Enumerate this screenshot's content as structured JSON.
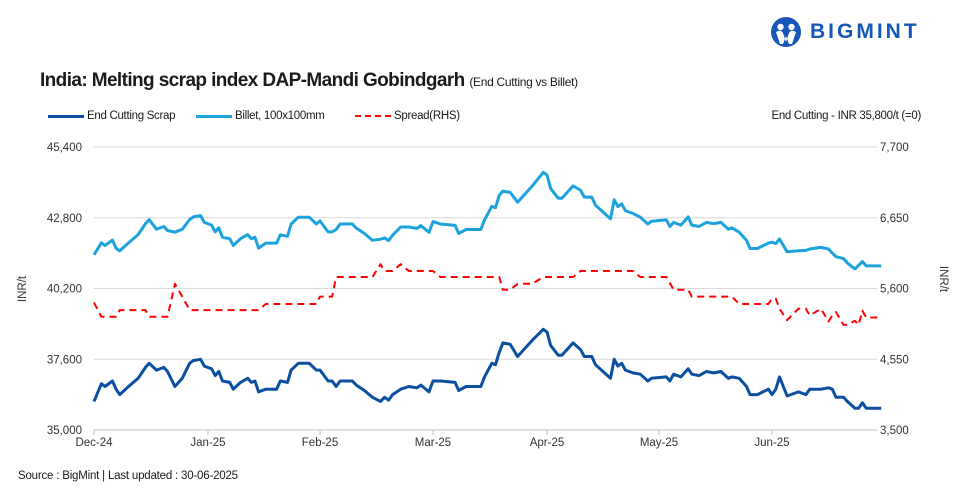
{
  "logo": {
    "text": "BIGMINT",
    "color": "#1658b8"
  },
  "header": {
    "title": "India: Melting scrap index DAP-Mandi Gobindgarh",
    "subtitle": "(End Cutting  vs Billet)"
  },
  "note": "End Cutting - INR 35,800/t (=0)",
  "footer": {
    "source": "Source : BigMint | Last updated : 30-06-2025"
  },
  "chart_data": {
    "type": "line",
    "ylabel_left": "INR/t",
    "ylabel_right": "INR/t",
    "ylim_left": [
      35000,
      45400
    ],
    "ylim_right": [
      3500,
      7700
    ],
    "yticks_left": [
      "35,000",
      "37,600",
      "40,200",
      "42,800",
      "45,400"
    ],
    "yticks_left_values": [
      35000,
      37600,
      40200,
      42800,
      45400
    ],
    "yticks_right": [
      "3,500",
      "4,550",
      "5,600",
      "6,650",
      "7,700"
    ],
    "yticks_right_values": [
      3500,
      4550,
      5600,
      6650,
      7700
    ],
    "xticks": [
      "Dec-24",
      "Jan-25",
      "Feb-25",
      "Mar-25",
      "Apr-25",
      "May-25",
      "Jun-25"
    ],
    "grid": true,
    "legend_position": "top-left",
    "x": [
      "2024-12-01",
      "2024-12-03",
      "2024-12-04",
      "2024-12-06",
      "2024-12-07",
      "2024-12-08",
      "2024-12-10",
      "2024-12-13",
      "2024-12-15",
      "2024-12-16",
      "2024-12-18",
      "2024-12-20",
      "2024-12-21",
      "2024-12-23",
      "2024-12-25",
      "2024-12-27",
      "2024-12-28",
      "2024-12-30",
      "2024-12-31",
      "2025-01-02",
      "2025-01-03",
      "2025-01-04",
      "2025-01-05",
      "2025-01-07",
      "2025-01-08",
      "2025-01-10",
      "2025-01-12",
      "2025-01-13",
      "2025-01-14",
      "2025-01-15",
      "2025-01-17",
      "2025-01-20",
      "2025-01-21",
      "2025-01-23",
      "2025-01-24",
      "2025-01-26",
      "2025-01-29",
      "2025-01-31",
      "2025-02-01",
      "2025-02-03",
      "2025-02-04",
      "2025-02-05",
      "2025-02-06",
      "2025-02-09",
      "2025-02-10",
      "2025-02-12",
      "2025-02-14",
      "2025-02-16",
      "2025-02-17",
      "2025-02-18",
      "2025-02-19",
      "2025-02-21",
      "2025-02-23",
      "2025-02-25",
      "2025-02-26",
      "2025-02-28",
      "2025-03-01",
      "2025-03-03",
      "2025-03-07",
      "2025-03-08",
      "2025-03-10",
      "2025-03-14",
      "2025-03-15",
      "2025-03-17",
      "2025-03-18",
      "2025-03-19",
      "2025-03-20",
      "2025-03-22",
      "2025-03-24",
      "2025-03-26",
      "2025-03-28",
      "2025-03-31",
      "2025-04-01",
      "2025-04-02",
      "2025-04-04",
      "2025-04-05",
      "2025-04-08",
      "2025-04-10",
      "2025-04-11",
      "2025-04-13",
      "2025-04-14",
      "2025-04-16",
      "2025-04-18",
      "2025-04-19",
      "2025-04-20",
      "2025-04-21",
      "2025-04-22",
      "2025-04-24",
      "2025-04-26",
      "2025-04-28",
      "2025-04-29",
      "2025-05-03",
      "2025-05-04",
      "2025-05-05",
      "2025-05-07",
      "2025-05-09",
      "2025-05-10",
      "2025-05-12",
      "2025-05-14",
      "2025-05-16",
      "2025-05-18",
      "2025-05-20",
      "2025-05-21",
      "2025-05-23",
      "2025-05-25",
      "2025-05-26",
      "2025-05-28",
      "2025-05-31",
      "2025-06-01",
      "2025-06-02",
      "2025-06-03",
      "2025-06-05",
      "2025-06-08",
      "2025-06-10",
      "2025-06-11",
      "2025-06-14",
      "2025-06-16",
      "2025-06-17",
      "2025-06-18",
      "2025-06-20",
      "2025-06-21",
      "2025-06-23",
      "2025-06-24",
      "2025-06-25",
      "2025-06-26",
      "2025-06-30"
    ],
    "series": [
      {
        "name": "End Cutting Scrap",
        "axis": "left",
        "color": "#0b4fa0",
        "style": "solid",
        "values": [
          36050,
          36700,
          36600,
          36800,
          36500,
          36300,
          36550,
          36900,
          37300,
          37450,
          37200,
          37300,
          37150,
          36600,
          36900,
          37450,
          37550,
          37600,
          37350,
          37250,
          37000,
          37150,
          36800,
          36750,
          36500,
          36750,
          36900,
          36750,
          36800,
          36400,
          36500,
          36500,
          36800,
          36750,
          37200,
          37450,
          37450,
          37200,
          37200,
          36800,
          36800,
          36600,
          36800,
          36800,
          36650,
          36450,
          36200,
          36050,
          36200,
          36100,
          36300,
          36500,
          36600,
          36550,
          36650,
          36400,
          36800,
          36800,
          36750,
          36450,
          36600,
          36600,
          36950,
          37450,
          37400,
          37850,
          38200,
          38150,
          37700,
          38000,
          38300,
          38700,
          38600,
          38100,
          37750,
          37750,
          38200,
          37950,
          37700,
          37700,
          37400,
          37150,
          36900,
          37600,
          37350,
          37450,
          37200,
          37100,
          37050,
          36800,
          36900,
          36950,
          36800,
          37050,
          36950,
          37250,
          37050,
          37000,
          37150,
          37100,
          37150,
          36900,
          36950,
          36900,
          36600,
          36300,
          36300,
          36500,
          36300,
          36500,
          36950,
          36250,
          36400,
          36300,
          36500,
          36500,
          36550,
          36500,
          36200,
          36200,
          36050,
          35800,
          35800,
          36000,
          35800,
          35800
        ]
      },
      {
        "name": "Billet, 100x100mm",
        "axis": "left",
        "color": "#1ca3de",
        "style": "solid",
        "values": [
          41440,
          41880,
          41780,
          41980,
          41680,
          41580,
          41830,
          42180,
          42580,
          42730,
          42380,
          42480,
          42330,
          42270,
          42380,
          42730,
          42830,
          42880,
          42630,
          42530,
          42280,
          42430,
          42080,
          42030,
          41780,
          42030,
          42180,
          42030,
          42080,
          41680,
          41870,
          41870,
          42170,
          42120,
          42570,
          42820,
          42820,
          42570,
          42680,
          42280,
          42280,
          42370,
          42570,
          42570,
          42420,
          42220,
          41970,
          42010,
          42060,
          41960,
          42160,
          42460,
          42460,
          42410,
          42510,
          42260,
          42660,
          42570,
          42520,
          42220,
          42370,
          42370,
          42720,
          43220,
          43170,
          43620,
          43780,
          43730,
          43370,
          43670,
          43970,
          44470,
          44370,
          43870,
          43520,
          43520,
          43970,
          43810,
          43560,
          43560,
          43260,
          43010,
          42760,
          43460,
          43210,
          43310,
          43060,
          42960,
          42820,
          42570,
          42670,
          42720,
          42480,
          42630,
          42530,
          42830,
          42530,
          42480,
          42630,
          42580,
          42630,
          42380,
          42430,
          42270,
          41970,
          41670,
          41670,
          41870,
          41900,
          41850,
          42020,
          41550,
          41590,
          41600,
          41650,
          41710,
          41650,
          41500,
          41370,
          41300,
          41140,
          40920,
          41050,
          41190,
          41030,
          41030
        ]
      },
      {
        "name": "Spread(RHS)",
        "axis": "right",
        "color": "#ff0000",
        "style": "dashed",
        "values": [
          5390,
          5180,
          5180,
          5180,
          5180,
          5280,
          5280,
          5280,
          5280,
          5180,
          5180,
          5180,
          5180,
          5670,
          5480,
          5280,
          5280,
          5280,
          5280,
          5280,
          5280,
          5280,
          5280,
          5280,
          5280,
          5280,
          5280,
          5280,
          5280,
          5280,
          5370,
          5370,
          5370,
          5370,
          5370,
          5370,
          5370,
          5370,
          5480,
          5480,
          5480,
          5770,
          5770,
          5770,
          5770,
          5770,
          5770,
          5960,
          5860,
          5860,
          5860,
          5960,
          5860,
          5860,
          5860,
          5860,
          5860,
          5770,
          5770,
          5770,
          5770,
          5770,
          5770,
          5770,
          5770,
          5770,
          5580,
          5580,
          5670,
          5670,
          5670,
          5770,
          5770,
          5770,
          5770,
          5770,
          5770,
          5860,
          5860,
          5860,
          5860,
          5860,
          5860,
          5860,
          5860,
          5860,
          5860,
          5860,
          5770,
          5770,
          5770,
          5770,
          5680,
          5580,
          5580,
          5580,
          5480,
          5480,
          5480,
          5480,
          5480,
          5480,
          5480,
          5370,
          5370,
          5370,
          5370,
          5370,
          5450,
          5450,
          5300,
          5130,
          5300,
          5300,
          5200,
          5300,
          5110,
          5200,
          5250,
          5060,
          5060,
          5120,
          5060,
          5270,
          5170,
          5170
        ]
      }
    ]
  }
}
